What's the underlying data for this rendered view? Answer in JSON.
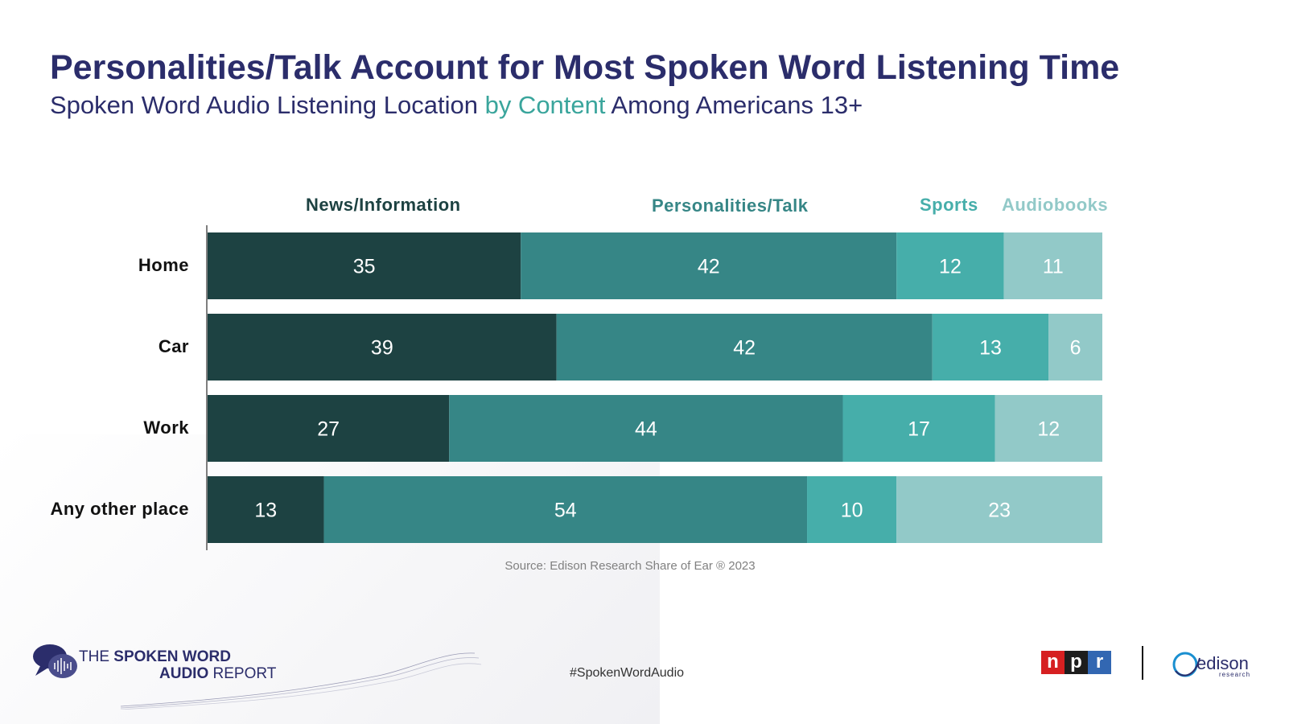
{
  "title": "Personalities/Talk Account for Most Spoken Word Listening Time",
  "subtitle": {
    "part1": "Spoken Word Audio Listening Location ",
    "highlight": "by Content",
    "part2": " Among Americans 13+"
  },
  "colors": {
    "title": "#2b2d6b",
    "highlight": "#3aa59c",
    "series": [
      "#1d4242",
      "#368686",
      "#46aeaa",
      "#92c9c8"
    ],
    "legend_text": [
      "#1d4242",
      "#368686",
      "#46aeaa",
      "#92c9c8"
    ]
  },
  "chart_data": {
    "type": "bar",
    "orientation": "horizontal",
    "stacked": true,
    "categories": [
      "Home",
      "Car",
      "Work",
      "Any other place"
    ],
    "series": [
      {
        "name": "News/Information",
        "values": [
          35,
          39,
          27,
          13
        ]
      },
      {
        "name": "Personalities/Talk",
        "values": [
          42,
          42,
          44,
          54
        ]
      },
      {
        "name": "Sports",
        "values": [
          12,
          13,
          17,
          10
        ]
      },
      {
        "name": "Audiobooks",
        "values": [
          11,
          6,
          12,
          23
        ]
      }
    ],
    "xlim": [
      0,
      100
    ],
    "legend_position": "top",
    "data_labels": true
  },
  "source": "Source: Edison Research Share of Ear ® 2023",
  "hashtag": "#SpokenWordAudio",
  "brand": {
    "line1_a": "THE ",
    "line1_b": "SPOKEN WORD",
    "line2_a": "AUDIO",
    "line2_b": " REPORT"
  },
  "logos": {
    "npr": [
      "n",
      "p",
      "r"
    ],
    "npr_colors": [
      "#d62021",
      "#1d1d1d",
      "#3267b2"
    ],
    "edison": "edison",
    "edison_sub": "research"
  }
}
